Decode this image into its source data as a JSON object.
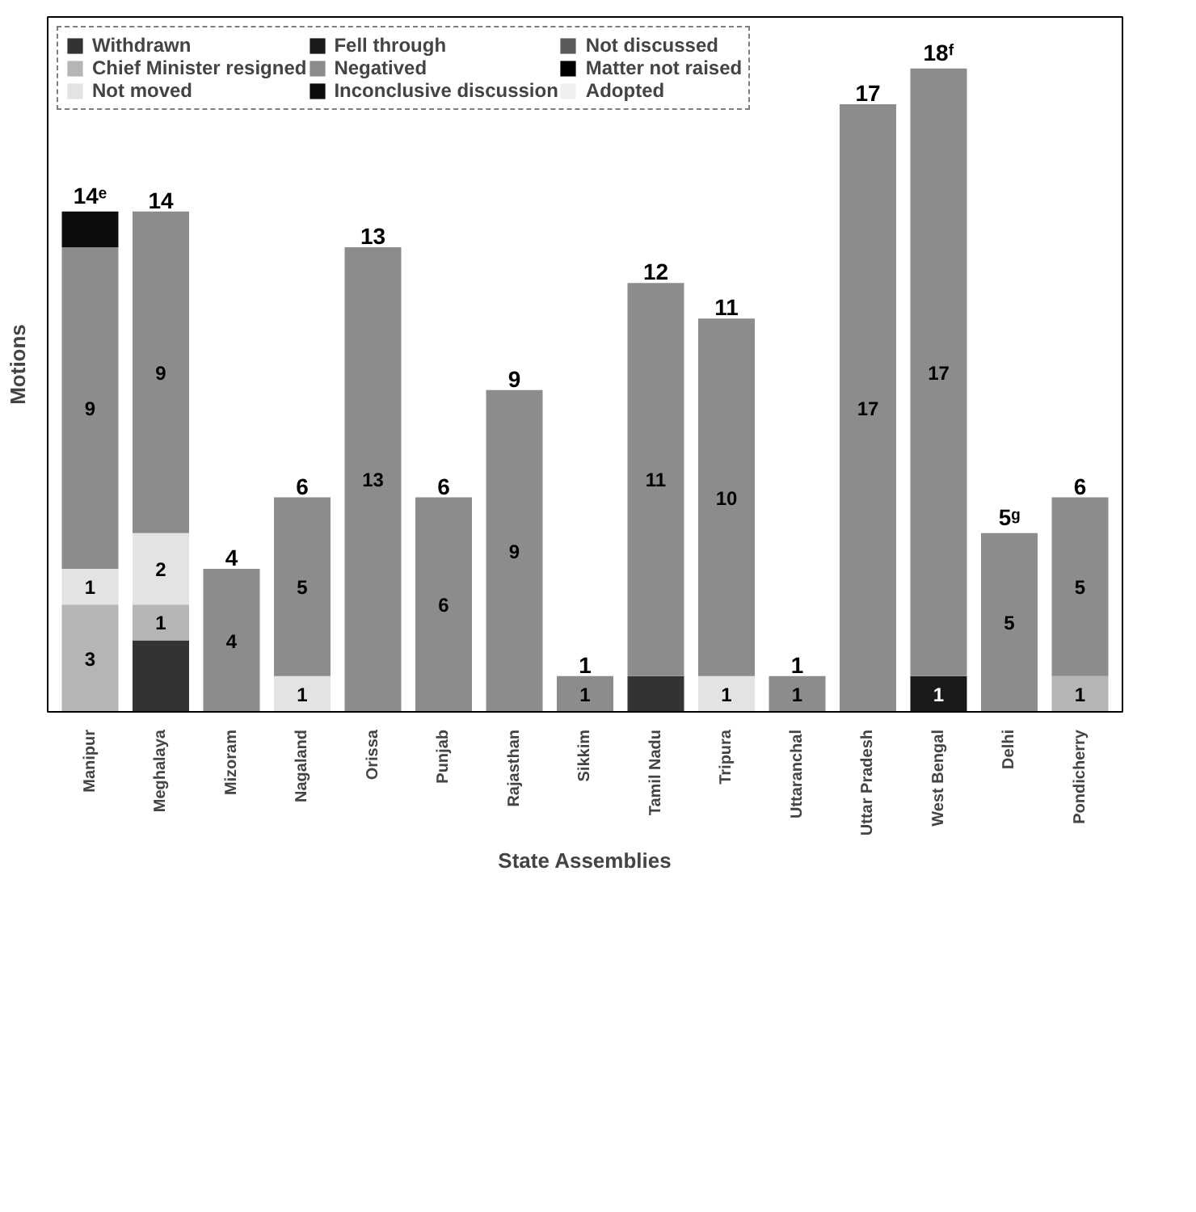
{
  "chart_data": {
    "type": "bar",
    "stacked": true,
    "xlabel": "State Assemblies",
    "ylabel": "Motions",
    "tick_labels": "x",
    "legend": "top left",
    "grid": false,
    "categories": [
      "Manipur",
      "Meghalaya",
      "Mizoram",
      "Nagaland",
      "Orissa",
      "Punjab",
      "Rajasthan",
      "Sikkim",
      "Tamil Nadu",
      "Tripura",
      "Uttaranchal",
      "Uttar Pradesh",
      "West Bengal",
      "Delhi",
      "Pondicherry"
    ],
    "series": [
      {
        "name": "Withdrawn",
        "color": "#333333",
        "values": [
          0,
          2,
          0,
          0,
          0,
          0,
          0,
          0,
          1,
          0,
          0,
          0,
          0,
          0,
          0
        ],
        "value_labels": [
          null,
          null,
          null,
          null,
          null,
          null,
          null,
          null,
          null,
          null,
          null,
          null,
          null,
          null,
          null
        ]
      },
      {
        "name": "Chief Minister resigned",
        "color": "#b5b5b5",
        "values": [
          3,
          1,
          0,
          0,
          0,
          0,
          0,
          0,
          0,
          0,
          0,
          0,
          0,
          0,
          1
        ],
        "value_labels": [
          "3",
          "1",
          null,
          null,
          null,
          null,
          null,
          null,
          null,
          null,
          null,
          null,
          null,
          null,
          "1"
        ]
      },
      {
        "name": "Not moved",
        "color": "#e3e3e3",
        "values": [
          1,
          2,
          0,
          1,
          0,
          0,
          0,
          0,
          0,
          1,
          0,
          0,
          0,
          0,
          0
        ],
        "value_labels": [
          "1",
          "2",
          null,
          "1",
          null,
          null,
          null,
          null,
          null,
          "1",
          null,
          null,
          null,
          null,
          null
        ]
      },
      {
        "name": "Fell through",
        "color": "#1a1a1a",
        "values": [
          0,
          0,
          0,
          0,
          0,
          0,
          0,
          0,
          0,
          0,
          0,
          0,
          1,
          0,
          0
        ],
        "value_labels": [
          null,
          null,
          null,
          null,
          null,
          null,
          null,
          null,
          null,
          null,
          null,
          null,
          "1",
          null,
          null
        ]
      },
      {
        "name": "Negatived",
        "color": "#8c8c8c",
        "values": [
          9,
          9,
          4,
          5,
          13,
          6,
          9,
          1,
          11,
          10,
          1,
          17,
          17,
          5,
          5
        ],
        "value_labels": [
          "9",
          "9",
          "4",
          "5",
          "13",
          "6",
          "9",
          "1",
          "11",
          "10",
          "1",
          "17",
          "17",
          "5",
          "5"
        ]
      },
      {
        "name": "Inconclusive discussion",
        "color": "#0d0d0d",
        "values": [
          1,
          0,
          0,
          0,
          0,
          0,
          0,
          0,
          0,
          0,
          0,
          0,
          0,
          0,
          0
        ],
        "value_labels": [
          null,
          null,
          null,
          null,
          null,
          null,
          null,
          null,
          null,
          null,
          null,
          null,
          null,
          null,
          null
        ]
      },
      {
        "name": "Not discussed",
        "color": "#5a5a5a",
        "values": [
          0,
          0,
          0,
          0,
          0,
          0,
          0,
          0,
          0,
          0,
          0,
          0,
          0,
          0,
          0
        ]
      },
      {
        "name": "Matter not raised",
        "color": "#000000",
        "values": [
          0,
          0,
          0,
          0,
          0,
          0,
          0,
          0,
          0,
          0,
          0,
          0,
          0,
          0,
          0
        ]
      },
      {
        "name": "Adopted",
        "color": "#f0f0f0",
        "values": [
          0,
          0,
          0,
          0,
          0,
          0,
          0,
          0,
          0,
          0,
          0,
          0,
          0,
          0,
          0
        ]
      }
    ],
    "totals": [
      "14ᵉ",
      "14",
      "4",
      "6",
      "13",
      "6",
      "9",
      "1",
      "12",
      "11",
      "1",
      "17",
      "18ᶠ",
      "5ᵍ",
      "6"
    ]
  }
}
